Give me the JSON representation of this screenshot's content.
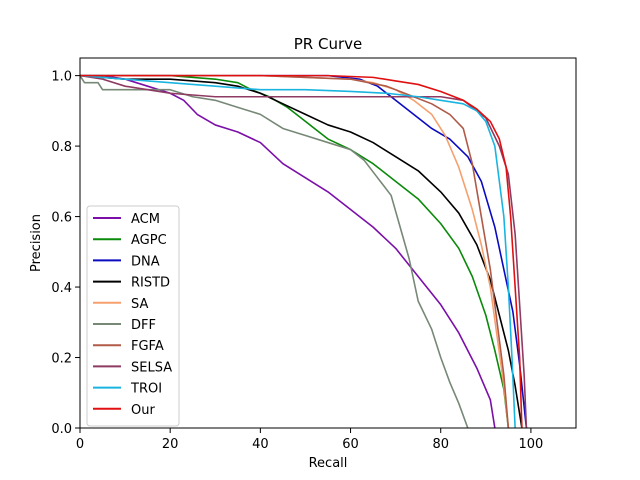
{
  "chart_data": {
    "type": "line",
    "title": "PR Curve",
    "xlabel": "Recall",
    "ylabel": "Precision",
    "xlim": [
      0,
      110
    ],
    "ylim": [
      0,
      1.05
    ],
    "xticks": [
      0,
      20,
      40,
      60,
      80,
      100
    ],
    "yticks": [
      0.0,
      0.2,
      0.4,
      0.6,
      0.8,
      1.0
    ],
    "xtick_labels": [
      "0",
      "20",
      "40",
      "60",
      "80",
      "100"
    ],
    "ytick_labels": [
      "0.0",
      "0.2",
      "0.4",
      "0.6",
      "0.8",
      "1.0"
    ],
    "grid": false,
    "legend_position": "lower-left",
    "series": [
      {
        "name": "ACM",
        "color": "#7b0fa8",
        "points": [
          [
            0,
            1.0
          ],
          [
            5,
            1.0
          ],
          [
            10,
            0.99
          ],
          [
            15,
            0.97
          ],
          [
            20,
            0.95
          ],
          [
            23,
            0.93
          ],
          [
            26,
            0.89
          ],
          [
            30,
            0.86
          ],
          [
            35,
            0.84
          ],
          [
            40,
            0.81
          ],
          [
            45,
            0.75
          ],
          [
            50,
            0.71
          ],
          [
            55,
            0.67
          ],
          [
            60,
            0.62
          ],
          [
            65,
            0.57
          ],
          [
            70,
            0.51
          ],
          [
            75,
            0.43
          ],
          [
            80,
            0.35
          ],
          [
            84,
            0.27
          ],
          [
            88,
            0.17
          ],
          [
            91,
            0.08
          ],
          [
            92,
            0.0
          ]
        ]
      },
      {
        "name": "AGPC",
        "color": "#0a8a0a",
        "points": [
          [
            0,
            1.0
          ],
          [
            10,
            1.0
          ],
          [
            20,
            1.0
          ],
          [
            30,
            0.99
          ],
          [
            35,
            0.98
          ],
          [
            38,
            0.96
          ],
          [
            42,
            0.94
          ],
          [
            46,
            0.91
          ],
          [
            50,
            0.87
          ],
          [
            55,
            0.82
          ],
          [
            60,
            0.79
          ],
          [
            65,
            0.75
          ],
          [
            70,
            0.7
          ],
          [
            75,
            0.65
          ],
          [
            80,
            0.58
          ],
          [
            84,
            0.51
          ],
          [
            87,
            0.43
          ],
          [
            90,
            0.32
          ],
          [
            92,
            0.22
          ],
          [
            94,
            0.11
          ],
          [
            95,
            0.0
          ]
        ]
      },
      {
        "name": "DNA",
        "color": "#0a0ac0",
        "points": [
          [
            0,
            1.0
          ],
          [
            20,
            1.0
          ],
          [
            40,
            1.0
          ],
          [
            55,
            1.0
          ],
          [
            62,
            0.99
          ],
          [
            66,
            0.97
          ],
          [
            70,
            0.93
          ],
          [
            74,
            0.89
          ],
          [
            78,
            0.85
          ],
          [
            82,
            0.82
          ],
          [
            86,
            0.77
          ],
          [
            89,
            0.7
          ],
          [
            92,
            0.57
          ],
          [
            94,
            0.45
          ],
          [
            96,
            0.33
          ],
          [
            97.5,
            0.18
          ],
          [
            99,
            0.0
          ]
        ]
      },
      {
        "name": "RISTD",
        "color": "#000000",
        "points": [
          [
            0,
            1.0
          ],
          [
            10,
            0.99
          ],
          [
            20,
            0.99
          ],
          [
            30,
            0.98
          ],
          [
            35,
            0.97
          ],
          [
            40,
            0.95
          ],
          [
            45,
            0.92
          ],
          [
            50,
            0.89
          ],
          [
            55,
            0.86
          ],
          [
            60,
            0.84
          ],
          [
            65,
            0.81
          ],
          [
            70,
            0.77
          ],
          [
            75,
            0.73
          ],
          [
            80,
            0.67
          ],
          [
            84,
            0.61
          ],
          [
            88,
            0.52
          ],
          [
            91,
            0.42
          ],
          [
            93,
            0.32
          ],
          [
            95,
            0.22
          ],
          [
            96.5,
            0.12
          ],
          [
            98,
            0.0
          ]
        ]
      },
      {
        "name": "SA",
        "color": "#f5a06e",
        "points": [
          [
            0,
            1.0
          ],
          [
            20,
            1.0
          ],
          [
            40,
            1.0
          ],
          [
            60,
            0.99
          ],
          [
            65,
            0.98
          ],
          [
            70,
            0.96
          ],
          [
            74,
            0.93
          ],
          [
            78,
            0.89
          ],
          [
            81,
            0.83
          ],
          [
            84,
            0.74
          ],
          [
            87,
            0.62
          ],
          [
            89,
            0.52
          ],
          [
            91,
            0.4
          ],
          [
            92.5,
            0.26
          ],
          [
            94,
            0.12
          ],
          [
            95,
            0.0
          ]
        ]
      },
      {
        "name": "DFF",
        "color": "#778877",
        "points": [
          [
            0,
            1.0
          ],
          [
            1,
            0.98
          ],
          [
            4,
            0.98
          ],
          [
            5,
            0.96
          ],
          [
            15,
            0.96
          ],
          [
            20,
            0.96
          ],
          [
            25,
            0.94
          ],
          [
            30,
            0.93
          ],
          [
            35,
            0.91
          ],
          [
            40,
            0.89
          ],
          [
            45,
            0.85
          ],
          [
            50,
            0.83
          ],
          [
            55,
            0.81
          ],
          [
            60,
            0.79
          ],
          [
            63,
            0.76
          ],
          [
            66,
            0.71
          ],
          [
            69,
            0.66
          ],
          [
            71,
            0.57
          ],
          [
            73,
            0.48
          ],
          [
            75,
            0.36
          ],
          [
            78,
            0.28
          ],
          [
            80,
            0.2
          ],
          [
            82,
            0.13
          ],
          [
            84,
            0.07
          ],
          [
            86,
            0.0
          ]
        ]
      },
      {
        "name": "FGFA",
        "color": "#b05a48",
        "points": [
          [
            0,
            1.0
          ],
          [
            20,
            1.0
          ],
          [
            40,
            1.0
          ],
          [
            60,
            0.99
          ],
          [
            68,
            0.97
          ],
          [
            74,
            0.94
          ],
          [
            78,
            0.92
          ],
          [
            82,
            0.89
          ],
          [
            85,
            0.85
          ],
          [
            87,
            0.75
          ],
          [
            89,
            0.6
          ],
          [
            91,
            0.45
          ],
          [
            92.5,
            0.3
          ],
          [
            94,
            0.15
          ],
          [
            95,
            0.0
          ]
        ]
      },
      {
        "name": "SELSA",
        "color": "#8e3a62",
        "points": [
          [
            0,
            1.0
          ],
          [
            5,
            0.99
          ],
          [
            10,
            0.97
          ],
          [
            15,
            0.96
          ],
          [
            20,
            0.95
          ],
          [
            30,
            0.94
          ],
          [
            40,
            0.94
          ],
          [
            50,
            0.94
          ],
          [
            60,
            0.94
          ],
          [
            70,
            0.94
          ],
          [
            80,
            0.94
          ],
          [
            85,
            0.93
          ],
          [
            90,
            0.88
          ],
          [
            93,
            0.8
          ],
          [
            95,
            0.72
          ],
          [
            96.5,
            0.55
          ],
          [
            97.5,
            0.35
          ],
          [
            98.5,
            0.15
          ],
          [
            99,
            0.0
          ]
        ]
      },
      {
        "name": "TROI",
        "color": "#1ab4e0",
        "points": [
          [
            0,
            1.0
          ],
          [
            10,
            0.99
          ],
          [
            20,
            0.98
          ],
          [
            30,
            0.97
          ],
          [
            40,
            0.96
          ],
          [
            50,
            0.96
          ],
          [
            60,
            0.955
          ],
          [
            68,
            0.95
          ],
          [
            75,
            0.94
          ],
          [
            80,
            0.93
          ],
          [
            85,
            0.92
          ],
          [
            88,
            0.9
          ],
          [
            90,
            0.87
          ],
          [
            92,
            0.8
          ],
          [
            94,
            0.6
          ],
          [
            95,
            0.4
          ],
          [
            95.8,
            0.2
          ],
          [
            96.5,
            0.0
          ]
        ]
      },
      {
        "name": "Our",
        "color": "#e01010",
        "points": [
          [
            0,
            1.0
          ],
          [
            20,
            1.0
          ],
          [
            40,
            1.0
          ],
          [
            55,
            1.0
          ],
          [
            65,
            0.995
          ],
          [
            70,
            0.985
          ],
          [
            75,
            0.975
          ],
          [
            80,
            0.955
          ],
          [
            85,
            0.93
          ],
          [
            88,
            0.905
          ],
          [
            91,
            0.87
          ],
          [
            93,
            0.82
          ],
          [
            94.5,
            0.74
          ],
          [
            95.5,
            0.6
          ],
          [
            96.5,
            0.4
          ],
          [
            97.5,
            0.2
          ],
          [
            98,
            0.0
          ]
        ]
      }
    ]
  }
}
